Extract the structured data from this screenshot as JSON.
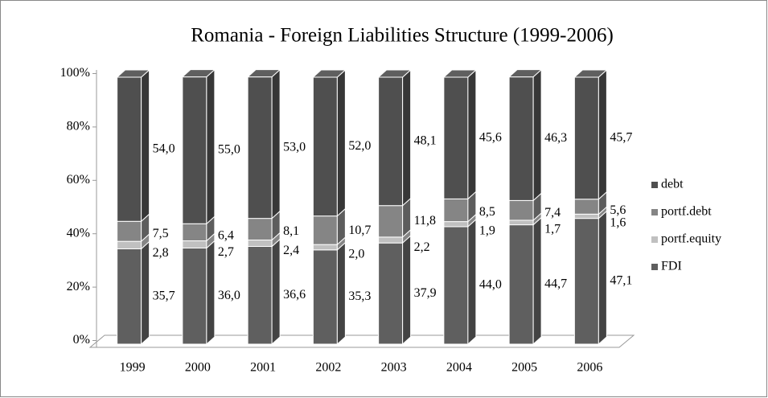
{
  "chart_data": {
    "type": "bar",
    "stacked": true,
    "title": "Romania - Foreign Liabilities Structure (1999-2006)",
    "categories": [
      "1999",
      "2000",
      "2001",
      "2002",
      "2003",
      "2004",
      "2005",
      "2006"
    ],
    "series": [
      {
        "name": "FDI",
        "color": "#5f5f5f",
        "values": [
          35.7,
          36.0,
          36.6,
          35.3,
          37.9,
          44.0,
          44.7,
          47.1
        ],
        "value_labels": [
          "35,7",
          "36,0",
          "36,6",
          "35,3",
          "37,9",
          "44,0",
          "44,7",
          "47,1"
        ]
      },
      {
        "name": "portf.equity",
        "color": "#c0c0c0",
        "values": [
          2.8,
          2.7,
          2.4,
          2.0,
          2.2,
          1.9,
          1.7,
          1.6
        ],
        "value_labels": [
          "2,8",
          "2,7",
          "2,4",
          "2,0",
          "2,2",
          "1,9",
          "1,7",
          "1,6"
        ]
      },
      {
        "name": "portf.debt",
        "color": "#858585",
        "values": [
          7.5,
          6.4,
          8.1,
          10.7,
          11.8,
          8.5,
          7.4,
          5.6
        ],
        "value_labels": [
          "7,5",
          "6,4",
          "8,1",
          "10,7",
          "11,8",
          "8,5",
          "7,4",
          "5,6"
        ]
      },
      {
        "name": "debt",
        "color": "#4f4f4f",
        "values": [
          54.0,
          55.0,
          53.0,
          52.0,
          48.1,
          45.6,
          46.3,
          45.7
        ],
        "value_labels": [
          "54,0",
          "55,0",
          "53,0",
          "52,0",
          "48,1",
          "45,6",
          "46,3",
          "45,7"
        ]
      }
    ],
    "ylim": [
      0,
      100
    ],
    "yticks": [
      {
        "value": 0,
        "label": "0%"
      },
      {
        "value": 20,
        "label": "20%"
      },
      {
        "value": 40,
        "label": "40%"
      },
      {
        "value": 60,
        "label": "60%"
      },
      {
        "value": 80,
        "label": "80%"
      },
      {
        "value": 100,
        "label": "100%"
      }
    ],
    "legend": "right"
  }
}
